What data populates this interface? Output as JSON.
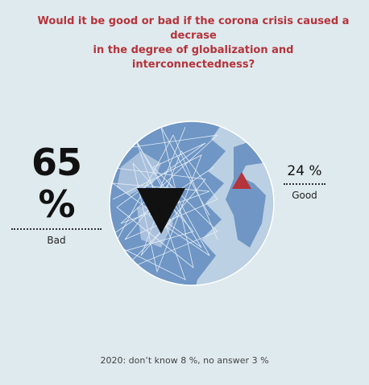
{
  "title": "Would it be good or bad if the corona crisis caused a decrase in the degree of globalization and interconnectedness?",
  "title_lines": [
    "Would it be good or bad if the corona crisis caused a decrase",
    "in the degree of globalization and interconnectedness?"
  ],
  "colors": {
    "background": "#dfeaee",
    "title": "#b5333b",
    "globe_dark": "#6f96c4",
    "globe_light": "#bcd0e4",
    "marker_good": "#b5333b",
    "marker_bad": "#111111"
  },
  "chart_data": {
    "type": "table",
    "categories": [
      "Bad",
      "Good"
    ],
    "values": [
      65,
      24
    ],
    "value_labels": [
      "65 %",
      "24 %"
    ],
    "unit": "%",
    "markers": [
      {
        "category": "Bad",
        "icon": "down-triangle-icon"
      },
      {
        "category": "Good",
        "icon": "up-triangle-icon"
      }
    ],
    "footnote": "2020: don’t know 8 %, no answer 3 %",
    "other": [
      {
        "label": "don’t know",
        "value": 8
      },
      {
        "label": "no answer",
        "value": 3
      }
    ]
  }
}
